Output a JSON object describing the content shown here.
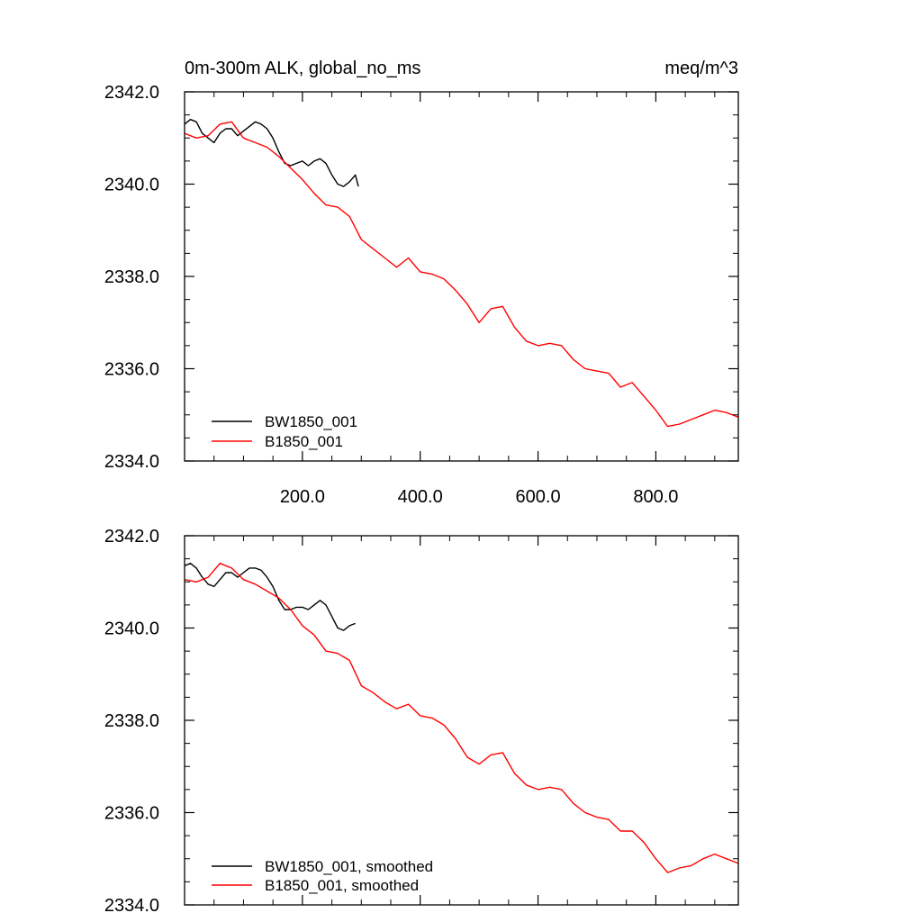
{
  "chart_data": [
    {
      "type": "line",
      "title": "0m-300m ALK, global_no_ms",
      "units": "meq/m^3",
      "xlabel": "",
      "ylabel": "",
      "xlim": [
        0,
        940
      ],
      "ylim": [
        2334.0,
        2342.0
      ],
      "x_ticks": [
        200,
        400,
        600,
        800
      ],
      "x_tick_labels": [
        "200.0",
        "400.0",
        "600.0",
        "800.0"
      ],
      "y_ticks": [
        2334,
        2336,
        2338,
        2340,
        2342
      ],
      "y_tick_labels": [
        "2334.0",
        "2336.0",
        "2338.0",
        "2340.0",
        "2342.0"
      ],
      "legend_position": "bottom-left",
      "series": [
        {
          "name": "BW1850_001",
          "color": "#000000",
          "x": [
            0,
            10,
            20,
            30,
            40,
            50,
            60,
            70,
            80,
            90,
            100,
            110,
            120,
            130,
            140,
            150,
            160,
            170,
            180,
            190,
            200,
            210,
            220,
            230,
            240,
            250,
            260,
            270,
            280,
            290,
            295
          ],
          "y": [
            2341.3,
            2341.4,
            2341.35,
            2341.1,
            2341.0,
            2340.9,
            2341.1,
            2341.2,
            2341.2,
            2341.05,
            2341.15,
            2341.25,
            2341.35,
            2341.3,
            2341.2,
            2341.0,
            2340.7,
            2340.45,
            2340.4,
            2340.45,
            2340.5,
            2340.4,
            2340.5,
            2340.55,
            2340.45,
            2340.2,
            2340.0,
            2339.95,
            2340.05,
            2340.2,
            2339.95
          ]
        },
        {
          "name": "B1850_001",
          "color": "#ff0000",
          "x": [
            0,
            20,
            40,
            60,
            80,
            100,
            120,
            140,
            160,
            180,
            200,
            220,
            240,
            260,
            280,
            300,
            320,
            340,
            360,
            380,
            400,
            420,
            440,
            460,
            480,
            500,
            520,
            540,
            560,
            580,
            600,
            620,
            640,
            660,
            680,
            700,
            720,
            740,
            760,
            780,
            800,
            820,
            840,
            860,
            880,
            900,
            920,
            940
          ],
          "y": [
            2341.1,
            2341.0,
            2341.05,
            2341.3,
            2341.35,
            2341.0,
            2340.9,
            2340.8,
            2340.6,
            2340.35,
            2340.1,
            2339.8,
            2339.55,
            2339.5,
            2339.3,
            2338.8,
            2338.6,
            2338.4,
            2338.2,
            2338.4,
            2338.1,
            2338.05,
            2337.95,
            2337.7,
            2337.4,
            2337.0,
            2337.3,
            2337.35,
            2336.9,
            2336.6,
            2336.5,
            2336.55,
            2336.5,
            2336.2,
            2336.0,
            2335.95,
            2335.9,
            2335.6,
            2335.7,
            2335.4,
            2335.1,
            2334.75,
            2334.8,
            2334.9,
            2335.0,
            2335.1,
            2335.05,
            2334.95
          ]
        }
      ]
    },
    {
      "type": "line",
      "title": "",
      "xlabel": "",
      "ylabel": "",
      "xlim": [
        0,
        940
      ],
      "ylim": [
        2334.0,
        2342.0
      ],
      "x_ticks": [
        200,
        400,
        600,
        800
      ],
      "x_tick_labels": [],
      "y_ticks": [
        2334,
        2336,
        2338,
        2340,
        2342
      ],
      "y_tick_labels": [
        "2334.0",
        "2336.0",
        "2338.0",
        "2340.0",
        "2342.0"
      ],
      "legend_position": "bottom-left",
      "series": [
        {
          "name": "BW1850_001, smoothed",
          "color": "#000000",
          "x": [
            0,
            10,
            20,
            30,
            40,
            50,
            60,
            70,
            80,
            90,
            100,
            110,
            120,
            130,
            140,
            150,
            160,
            170,
            180,
            190,
            200,
            210,
            220,
            230,
            240,
            250,
            260,
            270,
            280,
            290
          ],
          "y": [
            2341.35,
            2341.4,
            2341.3,
            2341.1,
            2340.95,
            2340.9,
            2341.05,
            2341.2,
            2341.2,
            2341.1,
            2341.2,
            2341.3,
            2341.3,
            2341.25,
            2341.1,
            2340.9,
            2340.6,
            2340.4,
            2340.4,
            2340.45,
            2340.45,
            2340.4,
            2340.5,
            2340.6,
            2340.5,
            2340.25,
            2340.0,
            2339.95,
            2340.05,
            2340.1
          ]
        },
        {
          "name": "B1850_001, smoothed",
          "color": "#ff0000",
          "x": [
            0,
            20,
            40,
            60,
            80,
            100,
            120,
            140,
            160,
            180,
            200,
            220,
            240,
            260,
            280,
            300,
            320,
            340,
            360,
            380,
            400,
            420,
            440,
            460,
            480,
            500,
            520,
            540,
            560,
            580,
            600,
            620,
            640,
            660,
            680,
            700,
            720,
            740,
            760,
            780,
            800,
            820,
            840,
            860,
            880,
            900,
            920,
            940
          ],
          "y": [
            2341.05,
            2341.0,
            2341.1,
            2341.4,
            2341.3,
            2341.05,
            2340.95,
            2340.8,
            2340.65,
            2340.4,
            2340.05,
            2339.85,
            2339.5,
            2339.45,
            2339.3,
            2338.75,
            2338.6,
            2338.4,
            2338.25,
            2338.35,
            2338.1,
            2338.05,
            2337.9,
            2337.6,
            2337.2,
            2337.05,
            2337.25,
            2337.3,
            2336.85,
            2336.6,
            2336.5,
            2336.55,
            2336.5,
            2336.2,
            2336.0,
            2335.9,
            2335.85,
            2335.6,
            2335.6,
            2335.35,
            2335.0,
            2334.7,
            2334.8,
            2334.85,
            2335.0,
            2335.1,
            2335.0,
            2334.9
          ]
        }
      ]
    }
  ]
}
